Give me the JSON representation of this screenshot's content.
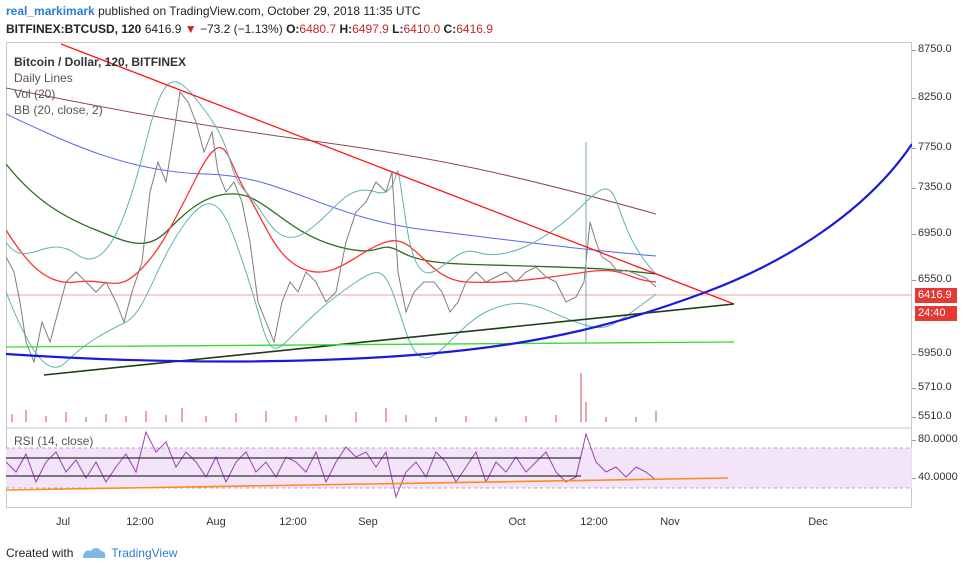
{
  "header": {
    "author": "real_markimark",
    "published_text": "published on TradingView.com, October 29, 2018 11:35 UTC"
  },
  "ticker": {
    "symbol": "BITFINEX:BTCUSD, 120",
    "last": "6416.9",
    "change": "−73.2 (−1.13%)",
    "o_label": "O:",
    "o": "6480.7",
    "h_label": "H:",
    "h": "6497.9",
    "l_label": "L:",
    "l": "6410.0",
    "c_label": "C:",
    "c": "6416.9"
  },
  "legend": {
    "title": "Bitcoin / Dollar, 120, BITFINEX",
    "items": [
      "Daily Lines",
      "Vol (20)",
      "BB (20, close, 2)"
    ],
    "rsi": "RSI (14, close)"
  },
  "y_axis": {
    "price_ticks": [
      "8750.0",
      "8250.0",
      "7750.0",
      "7350.0",
      "6950.0",
      "6550.0",
      "5950.0",
      "5710.0",
      "5510.0"
    ],
    "rsi_ticks": [
      "80.0000",
      "40.0000"
    ]
  },
  "badges": {
    "price": "6416.9",
    "countdown": "24:40",
    "price_color": "#e53935",
    "countdown_color": "#e53935"
  },
  "x_axis": {
    "ticks": [
      "Jul",
      "12:00",
      "Aug",
      "12:00",
      "Sep",
      "Oct",
      "12:00",
      "Nov",
      "Dec"
    ]
  },
  "footer": {
    "created_with": "Created with",
    "brand": "TradingView"
  },
  "colors": {
    "upper_trend": "#ff1a1a",
    "lower_trend": "#1b3d14",
    "support_green": "#33dd33",
    "curve_blue": "#1a1ad9",
    "bb_band": "#5fb3b3",
    "ma_red": "#ff3333",
    "ma_green": "#2e6b1c",
    "ma_blue": "#5566ee",
    "ma_maroon": "#8b4a4a",
    "rsi_line": "#9b3fb5",
    "rsi_fill": "#f2e1fa",
    "rsi_trend": "#ff8c1a"
  }
}
